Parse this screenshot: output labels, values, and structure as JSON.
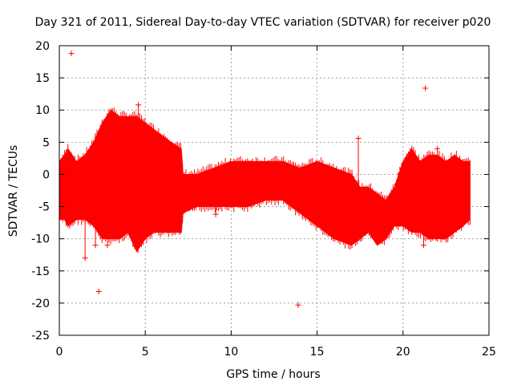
{
  "chart_data": {
    "type": "scatter",
    "title": "Day 321 of 2011, Sidereal Day-to-day VTEC variation (SDTVAR) for receiver p020",
    "xlabel": "GPS time / hours",
    "ylabel": "SDTVAR / TECUs",
    "xlim": [
      0,
      25
    ],
    "ylim": [
      -25,
      20
    ],
    "xticks": [
      "0",
      "5",
      "10",
      "15",
      "20",
      "25"
    ],
    "yticks": [
      "20",
      "15",
      "10",
      "5",
      "0",
      "-5",
      "-10",
      "-15",
      "-20",
      "-25"
    ],
    "grid": true,
    "color": "#ff0000",
    "band": [
      {
        "x": 0.0,
        "lo": -7,
        "hi": 2
      },
      {
        "x": 0.3,
        "lo": -7,
        "hi": 3
      },
      {
        "x": 0.5,
        "lo": -8,
        "hi": 4
      },
      {
        "x": 1.0,
        "lo": -7,
        "hi": 2
      },
      {
        "x": 1.5,
        "lo": -7,
        "hi": 3
      },
      {
        "x": 2.0,
        "lo": -8,
        "hi": 5
      },
      {
        "x": 2.5,
        "lo": -10,
        "hi": 8
      },
      {
        "x": 3.0,
        "lo": -10,
        "hi": 10
      },
      {
        "x": 3.5,
        "lo": -10,
        "hi": 9
      },
      {
        "x": 4.0,
        "lo": -9,
        "hi": 9
      },
      {
        "x": 4.5,
        "lo": -12,
        "hi": 9
      },
      {
        "x": 5.0,
        "lo": -10,
        "hi": 8
      },
      {
        "x": 5.5,
        "lo": -9,
        "hi": 7
      },
      {
        "x": 6.0,
        "lo": -9,
        "hi": 6
      },
      {
        "x": 6.5,
        "lo": -9,
        "hi": 5
      },
      {
        "x": 7.1,
        "lo": -9,
        "hi": 4
      },
      {
        "x": 7.2,
        "lo": -6,
        "hi": 0
      },
      {
        "x": 8.0,
        "lo": -5,
        "hi": 0
      },
      {
        "x": 9.0,
        "lo": -5,
        "hi": 1
      },
      {
        "x": 10.0,
        "lo": -5,
        "hi": 2
      },
      {
        "x": 11.0,
        "lo": -5,
        "hi": 2
      },
      {
        "x": 12.0,
        "lo": -4,
        "hi": 2
      },
      {
        "x": 13.0,
        "lo": -4,
        "hi": 2
      },
      {
        "x": 14.0,
        "lo": -6,
        "hi": 1
      },
      {
        "x": 15.0,
        "lo": -8,
        "hi": 2
      },
      {
        "x": 16.0,
        "lo": -10,
        "hi": 1
      },
      {
        "x": 17.0,
        "lo": -11,
        "hi": 0
      },
      {
        "x": 17.5,
        "lo": -10,
        "hi": -2
      },
      {
        "x": 18.0,
        "lo": -9,
        "hi": -2
      },
      {
        "x": 18.5,
        "lo": -11,
        "hi": -3
      },
      {
        "x": 19.0,
        "lo": -10,
        "hi": -4
      },
      {
        "x": 19.5,
        "lo": -8,
        "hi": -2
      },
      {
        "x": 20.0,
        "lo": -8,
        "hi": 2
      },
      {
        "x": 20.5,
        "lo": -9,
        "hi": 4
      },
      {
        "x": 21.0,
        "lo": -9,
        "hi": 2
      },
      {
        "x": 21.5,
        "lo": -10,
        "hi": 3
      },
      {
        "x": 22.0,
        "lo": -10,
        "hi": 3
      },
      {
        "x": 22.5,
        "lo": -10,
        "hi": 2
      },
      {
        "x": 23.0,
        "lo": -9,
        "hi": 3
      },
      {
        "x": 23.5,
        "lo": -8,
        "hi": 2
      },
      {
        "x": 23.9,
        "lo": -7,
        "hi": 2
      }
    ],
    "outliers": [
      {
        "x": 0.7,
        "y": 18.8
      },
      {
        "x": 1.5,
        "y": -13
      },
      {
        "x": 2.3,
        "y": -18.2
      },
      {
        "x": 2.1,
        "y": -11
      },
      {
        "x": 2.8,
        "y": -11
      },
      {
        "x": 13.9,
        "y": -20.3
      },
      {
        "x": 17.4,
        "y": 5.6
      },
      {
        "x": 21.3,
        "y": 13.4
      },
      {
        "x": 22.0,
        "y": 4.0
      },
      {
        "x": 21.2,
        "y": -11
      },
      {
        "x": 4.6,
        "y": 10.8
      },
      {
        "x": 9.1,
        "y": -6.2
      }
    ]
  }
}
